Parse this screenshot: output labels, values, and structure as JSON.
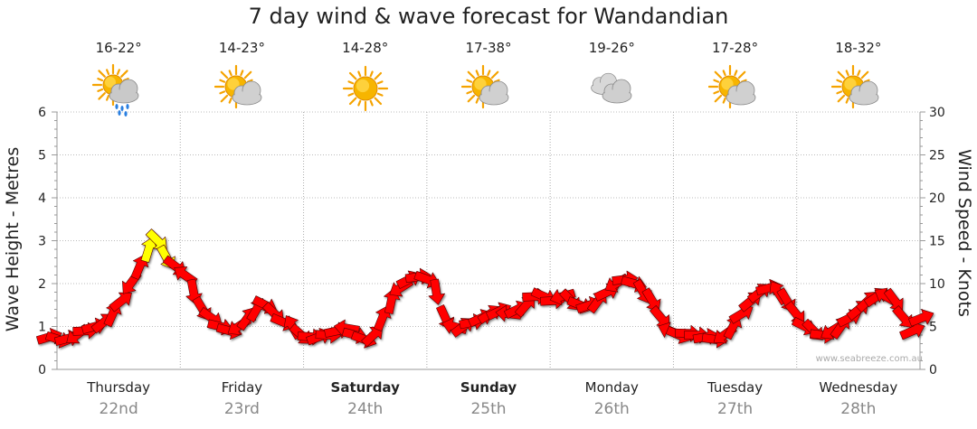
{
  "title": "7 day wind & wave forecast for Wandandian",
  "credit": "www.seabreeze.com.au",
  "days": [
    {
      "name": "Thursday",
      "date": "22nd",
      "temp": "16-22°",
      "icon": "sun-cloud-rain-icon",
      "bold": false
    },
    {
      "name": "Friday",
      "date": "23rd",
      "temp": "14-23°",
      "icon": "sun-cloud-icon",
      "bold": false
    },
    {
      "name": "Saturday",
      "date": "24th",
      "temp": "14-28°",
      "icon": "sun-icon",
      "bold": true
    },
    {
      "name": "Sunday",
      "date": "25th",
      "temp": "17-38°",
      "icon": "sun-cloud-icon",
      "bold": true
    },
    {
      "name": "Monday",
      "date": "26th",
      "temp": "19-26°",
      "icon": "cloud-icon",
      "bold": false
    },
    {
      "name": "Tuesday",
      "date": "27th",
      "temp": "17-28°",
      "icon": "sun-cloud-icon",
      "bold": false
    },
    {
      "name": "Wednesday",
      "date": "28th",
      "temp": "18-32°",
      "icon": "sun-cloud-icon",
      "bold": false
    }
  ],
  "chart_data": {
    "type": "line",
    "title": "7 day wind & wave forecast for Wandandian",
    "ylabel": "Wave Height - Metres",
    "y2label": "Wind Speed - Knots",
    "ylim": [
      0,
      6
    ],
    "y2lim": [
      0,
      30
    ],
    "yticks": [
      "0",
      "1",
      "2",
      "3",
      "4",
      "5",
      "6"
    ],
    "y2ticks": [
      "0",
      "5",
      "10",
      "15",
      "20",
      "25",
      "30"
    ],
    "grid": true,
    "series": [
      {
        "name": "Wind Speed - Knots",
        "unit": "knots",
        "color": "#ff0000",
        "highlight_color": "#ffff00",
        "highlight_threshold": 12.5,
        "values": [
          3.8,
          3.5,
          3.6,
          4.0,
          4.5,
          5.0,
          5.5,
          6.5,
          8.0,
          10.0,
          12.0,
          14.0,
          15.0,
          13.0,
          12.0,
          11.0,
          9.0,
          7.0,
          6.0,
          5.0,
          4.5,
          5.0,
          6.0,
          7.0,
          7.5,
          6.5,
          5.5,
          5.0,
          4.0,
          3.8,
          3.8,
          4.0,
          4.5,
          4.8,
          4.0,
          3.5,
          4.0,
          6.0,
          8.0,
          9.5,
          10.5,
          10.8,
          10.5,
          9.0,
          6.0,
          5.0,
          5.0,
          5.5,
          6.0,
          6.5,
          6.8,
          6.5,
          7.0,
          7.5,
          8.5,
          8.5,
          8.0,
          8.5,
          8.0,
          7.5,
          7.5,
          8.0,
          9.0,
          10.0,
          10.5,
          10.0,
          9.0,
          8.0,
          6.0,
          4.5,
          4.0,
          4.2,
          4.0,
          3.8,
          3.5,
          4.0,
          5.0,
          6.5,
          8.0,
          9.0,
          9.5,
          9.0,
          8.0,
          6.5,
          5.0,
          4.5,
          4.0,
          4.5,
          5.0,
          6.0,
          7.0,
          8.0,
          8.5,
          8.5,
          8.0,
          6.0,
          4.5,
          6.0
        ]
      }
    ]
  }
}
